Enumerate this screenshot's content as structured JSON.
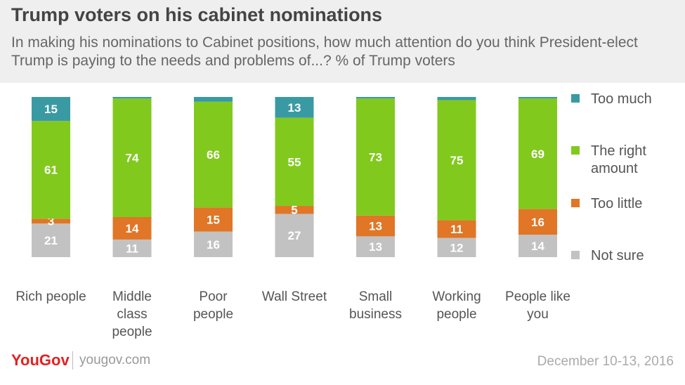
{
  "header": {
    "title": "Trump voters on his cabinet nominations",
    "subtitle": "In making his nominations to Cabinet positions, how much attention do you think President-elect Trump is paying to the needs and problems of...? % of Trump voters"
  },
  "footer": {
    "brand": "YouGov",
    "site": "yougov.com",
    "date": "December 10-13, 2016"
  },
  "colors": {
    "too_much": "#3a9aa3",
    "right_amount": "#82c91e",
    "too_little": "#e07626",
    "not_sure": "#c2c2c2"
  },
  "chart_data": {
    "type": "bar",
    "stacked": true,
    "categories": [
      [
        "Rich people"
      ],
      [
        "Middle",
        "class",
        "people"
      ],
      [
        "Poor",
        "people"
      ],
      [
        "Wall Street"
      ],
      [
        "Small",
        "business"
      ],
      [
        "Working",
        "people"
      ],
      [
        "People like",
        "you"
      ]
    ],
    "series": [
      {
        "name": "Not sure",
        "key": "not_sure",
        "values": [
          21,
          11,
          16,
          27,
          13,
          12,
          14
        ],
        "labels": [
          "21",
          "11",
          "16",
          "27",
          "13",
          "12",
          "14"
        ]
      },
      {
        "name": "Too little",
        "key": "too_little",
        "values": [
          3,
          14,
          15,
          5,
          13,
          11,
          16
        ],
        "labels": [
          "3",
          "14",
          "15",
          "5",
          "13",
          "11",
          "16"
        ]
      },
      {
        "name": "The right amount",
        "key": "right_amount",
        "values": [
          61,
          74,
          66,
          55,
          73,
          75,
          69
        ],
        "labels": [
          "61",
          "74",
          "66",
          "55",
          "73",
          "75",
          "69"
        ]
      },
      {
        "name": "Too much",
        "key": "too_much",
        "values": [
          15,
          1,
          3,
          13,
          1,
          2,
          1
        ],
        "labels": [
          "15",
          "",
          "",
          "13",
          "",
          "",
          ""
        ]
      }
    ],
    "legend": [
      {
        "key": "too_much",
        "lines": [
          "Too much"
        ]
      },
      {
        "key": "right_amount",
        "lines": [
          "The right",
          "amount"
        ]
      },
      {
        "key": "too_little",
        "lines": [
          "Too little"
        ]
      },
      {
        "key": "not_sure",
        "lines": [
          "Not sure"
        ]
      }
    ],
    "legend_position": "right",
    "ylim": [
      0,
      100
    ],
    "grid": false
  }
}
